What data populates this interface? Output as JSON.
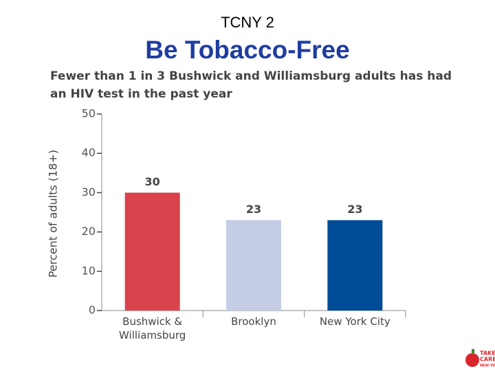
{
  "header": {
    "label": "TCNY 2",
    "title": "Be Tobacco-Free"
  },
  "chart_data": {
    "type": "bar",
    "title": "Fewer than 1 in 3 Bushwick and Williamsburg adults has had an HIV test in the past year",
    "y_label": "Percent of adults (18+)",
    "categories": [
      "Bushwick & Williamsburg",
      "Brooklyn",
      "New York City"
    ],
    "values": [
      30,
      23,
      23
    ],
    "colors": [
      "#d9434b",
      "#c5cde6",
      "#004c97"
    ],
    "ylim": [
      0,
      50
    ],
    "yticks": [
      0,
      10,
      20,
      30,
      40,
      50
    ]
  },
  "logo": {
    "lines": [
      "TAKE",
      "CARE",
      "NEW YORK"
    ]
  }
}
